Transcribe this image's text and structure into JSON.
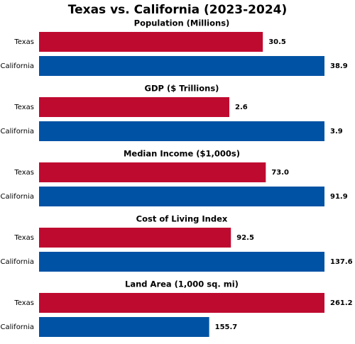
{
  "title": "Texas vs. California (2023-2024)",
  "chart_data": [
    {
      "type": "bar",
      "orientation": "horizontal",
      "title": "Population (Millions)",
      "categories": [
        "Texas",
        "California"
      ],
      "values": [
        30.5,
        38.9
      ],
      "colors": [
        "#bf0a30",
        "#0052a5"
      ],
      "xlim": [
        0,
        38.9
      ]
    },
    {
      "type": "bar",
      "orientation": "horizontal",
      "title": "GDP ($ Trillions)",
      "categories": [
        "Texas",
        "California"
      ],
      "values": [
        2.6,
        3.9
      ],
      "colors": [
        "#bf0a30",
        "#0052a5"
      ],
      "xlim": [
        0,
        3.9
      ]
    },
    {
      "type": "bar",
      "orientation": "horizontal",
      "title": "Median Income ($1,000s)",
      "categories": [
        "Texas",
        "California"
      ],
      "values": [
        73.0,
        91.9
      ],
      "value_labels": [
        "73.0",
        "91.9"
      ],
      "colors": [
        "#bf0a30",
        "#0052a5"
      ],
      "xlim": [
        0,
        91.9
      ]
    },
    {
      "type": "bar",
      "orientation": "horizontal",
      "title": "Cost of Living Index",
      "categories": [
        "Texas",
        "California"
      ],
      "values": [
        92.5,
        137.6
      ],
      "colors": [
        "#bf0a30",
        "#0052a5"
      ],
      "xlim": [
        0,
        137.6
      ]
    },
    {
      "type": "bar",
      "orientation": "horizontal",
      "title": "Land Area (1,000 sq. mi)",
      "categories": [
        "Texas",
        "California"
      ],
      "values": [
        261.2,
        155.7
      ],
      "colors": [
        "#bf0a30",
        "#0052a5"
      ],
      "xlim": [
        0,
        261.2
      ]
    }
  ]
}
